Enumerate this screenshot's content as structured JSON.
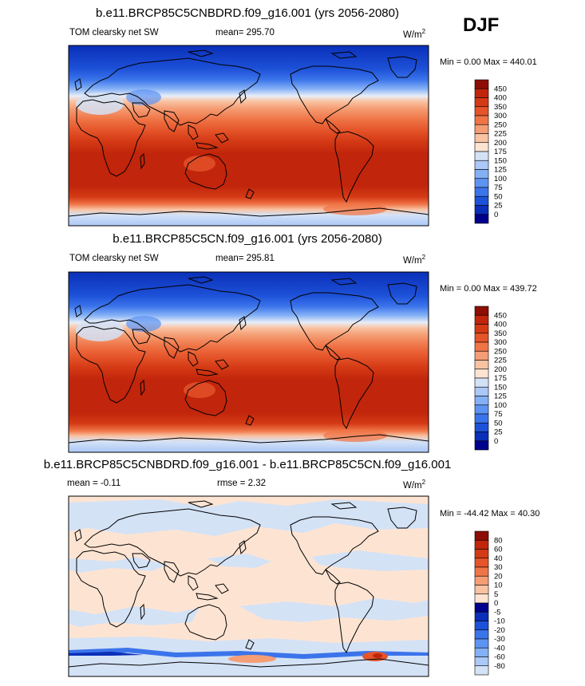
{
  "season": "DJF",
  "colors": {
    "bias_cold": [
      "#00008c",
      "#0a2fb8",
      "#1d51d8",
      "#3b74ea",
      "#5d93f2",
      "#84b0f6",
      "#abc8f7",
      "#d4e2f6"
    ],
    "bias_warm": [
      "#fde4d2",
      "#f9c3a3",
      "#f59d74",
      "#ef7446",
      "#e5542a",
      "#d43a15",
      "#c1250b",
      "#8c0e04"
    ]
  },
  "chart_data": [
    {
      "type": "heatmap",
      "title": "b.e11.BRCP85C5CNBDRD.f09_g16.001 (yrs 2056-2080)",
      "variable": "TOM clearsky net SW",
      "mean_label": "mean= 295.70",
      "units": "W/m",
      "units_exp": "2",
      "minmax": "Min =   0.00 Max = 440.01",
      "colorbar_levels": [
        450,
        400,
        350,
        300,
        250,
        225,
        200,
        175,
        150,
        125,
        100,
        75,
        50,
        25,
        0
      ],
      "xlim": [
        0,
        360
      ],
      "ylim": [
        -90,
        90
      ]
    },
    {
      "type": "heatmap",
      "title": "b.e11.BRCP85C5CN.f09_g16.001 (yrs 2056-2080)",
      "variable": "TOM clearsky net SW",
      "mean_label": "mean= 295.81",
      "units": "W/m",
      "units_exp": "2",
      "minmax": "Min =   0.00 Max = 439.72",
      "colorbar_levels": [
        450,
        400,
        350,
        300,
        250,
        225,
        200,
        175,
        150,
        125,
        100,
        75,
        50,
        25,
        0
      ],
      "xlim": [
        0,
        360
      ],
      "ylim": [
        -90,
        90
      ]
    },
    {
      "type": "heatmap",
      "title": "b.e11.BRCP85C5CNBDRD.f09_g16.001 - b.e11.BRCP85C5CN.f09_g16.001",
      "variable": "",
      "mean_label": "mean =  -0.11",
      "rmse_label": "rmse =   2.32",
      "units": "W/m",
      "units_exp": "2",
      "minmax": "Min = -44.42 Max =  40.30",
      "colorbar_levels": [
        80,
        60,
        40,
        30,
        20,
        10,
        5,
        0,
        -5,
        -10,
        -20,
        -30,
        -40,
        -60,
        -80
      ],
      "xlim": [
        0,
        360
      ],
      "ylim": [
        -90,
        90
      ]
    }
  ]
}
